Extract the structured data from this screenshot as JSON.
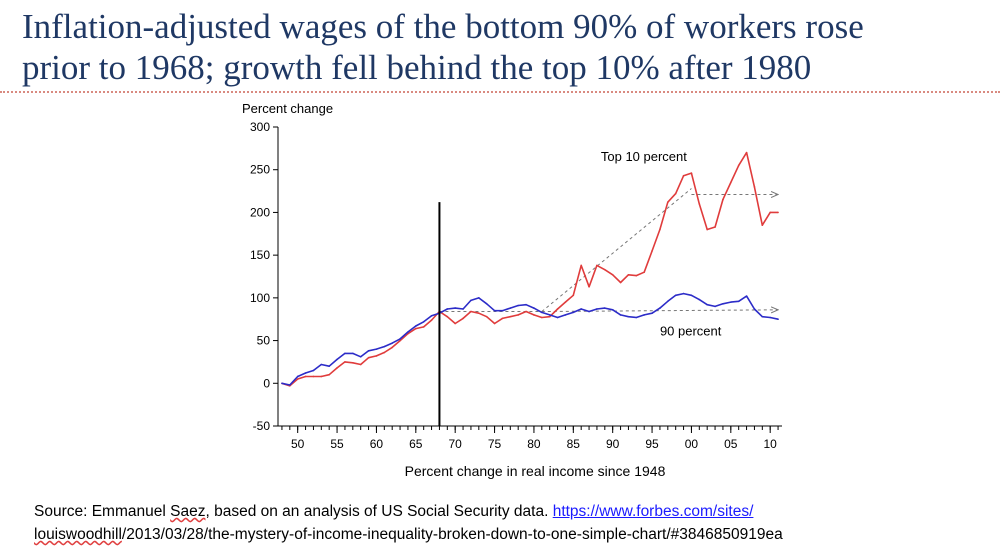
{
  "slide": {
    "title_line1": "Inflation-adjusted wages of the bottom 90% of workers rose",
    "title_line2": "prior to 1968; growth fell behind the top 10% after 1980"
  },
  "source": {
    "prefix": "Source: Emmanuel ",
    "name": "Saez",
    "middle": ", based on an analysis of US Social Security data. ",
    "link_part1": "https://www.forbes.com/sites/",
    "link_part2_handle": "louiswoodhill",
    "link_part2_rest": "/2013/03/28/the-mystery-of-income-inequality-broken-down-to-one-simple-chart/#3846850919ea"
  },
  "chart_data": {
    "type": "line",
    "ylabel": "Percent change",
    "xlabel": "Percent change in real income since 1948",
    "ylim": [
      -50,
      300
    ],
    "xlim": [
      1947.5,
      2011.5
    ],
    "y_ticks": [
      -50,
      0,
      50,
      100,
      150,
      200,
      250,
      300
    ],
    "x_ticks": [
      {
        "year": 1950,
        "label": "50"
      },
      {
        "year": 1955,
        "label": "55"
      },
      {
        "year": 1960,
        "label": "60"
      },
      {
        "year": 1965,
        "label": "65"
      },
      {
        "year": 1970,
        "label": "70"
      },
      {
        "year": 1975,
        "label": "75"
      },
      {
        "year": 1980,
        "label": "80"
      },
      {
        "year": 1985,
        "label": "85"
      },
      {
        "year": 1990,
        "label": "90"
      },
      {
        "year": 1995,
        "label": "95"
      },
      {
        "year": 2000,
        "label": "00"
      },
      {
        "year": 2005,
        "label": "05"
      },
      {
        "year": 2010,
        "label": "10"
      }
    ],
    "grid": false,
    "marker_year": 1968,
    "marker_top": 212,
    "colors": {
      "top10": "#e03c3c",
      "bottom90": "#2c2cc8",
      "axis": "#000000",
      "trend": "#777777"
    },
    "series": [
      {
        "name": "Top 10 percent",
        "x": [
          1948,
          1949,
          1950,
          1951,
          1952,
          1953,
          1954,
          1955,
          1956,
          1957,
          1958,
          1959,
          1960,
          1961,
          1962,
          1963,
          1964,
          1965,
          1966,
          1967,
          1968,
          1969,
          1970,
          1971,
          1972,
          1973,
          1974,
          1975,
          1976,
          1977,
          1978,
          1979,
          1980,
          1981,
          1982,
          1983,
          1984,
          1985,
          1986,
          1987,
          1988,
          1989,
          1990,
          1991,
          1992,
          1993,
          1994,
          1995,
          1996,
          1997,
          1998,
          1999,
          2000,
          2001,
          2002,
          2003,
          2004,
          2005,
          2006,
          2007,
          2008,
          2009,
          2010,
          2011
        ],
        "y": [
          0,
          -3,
          5,
          8,
          8,
          8,
          10,
          18,
          25,
          24,
          22,
          30,
          32,
          36,
          42,
          50,
          58,
          64,
          66,
          74,
          84,
          78,
          70,
          76,
          84,
          82,
          78,
          70,
          76,
          78,
          80,
          84,
          80,
          77,
          78,
          87,
          95,
          103,
          138,
          113,
          138,
          133,
          127,
          118,
          127,
          126,
          130,
          155,
          180,
          212,
          222,
          243,
          246,
          210,
          180,
          183,
          215,
          235,
          255,
          270,
          230,
          185,
          200,
          200
        ]
      },
      {
        "name": "90 percent",
        "x": [
          1948,
          1949,
          1950,
          1951,
          1952,
          1953,
          1954,
          1955,
          1956,
          1957,
          1958,
          1959,
          1960,
          1961,
          1962,
          1963,
          1964,
          1965,
          1966,
          1967,
          1968,
          1969,
          1970,
          1971,
          1972,
          1973,
          1974,
          1975,
          1976,
          1977,
          1978,
          1979,
          1980,
          1981,
          1982,
          1983,
          1984,
          1985,
          1986,
          1987,
          1988,
          1989,
          1990,
          1991,
          1992,
          1993,
          1994,
          1995,
          1996,
          1997,
          1998,
          1999,
          2000,
          2001,
          2002,
          2003,
          2004,
          2005,
          2006,
          2007,
          2008,
          2009,
          2010,
          2011
        ],
        "y": [
          0,
          -2,
          8,
          12,
          15,
          22,
          20,
          28,
          35,
          35,
          31,
          38,
          40,
          43,
          47,
          52,
          60,
          67,
          72,
          79,
          82,
          87,
          88,
          87,
          97,
          100,
          93,
          85,
          85,
          88,
          91,
          92,
          88,
          83,
          80,
          77,
          80,
          83,
          87,
          84,
          87,
          88,
          86,
          80,
          78,
          77,
          80,
          82,
          88,
          96,
          103,
          105,
          103,
          98,
          92,
          90,
          93,
          95,
          96,
          102,
          87,
          78,
          77,
          75
        ]
      }
    ],
    "trend_lines": [
      {
        "from": [
          1968,
          84
        ],
        "to": [
          1981,
          84
        ]
      },
      {
        "from": [
          1981,
          84
        ],
        "to": [
          2000,
          228
        ]
      },
      {
        "from": [
          2000,
          221
        ],
        "to": [
          2011,
          221
        ],
        "arrow": true
      },
      {
        "from": [
          1981,
          84
        ],
        "to": [
          2011,
          86
        ],
        "arrow": true
      }
    ],
    "annotations": [
      {
        "text": "Top 10 percent",
        "x": 1988.5,
        "y": 260,
        "series": "top10"
      },
      {
        "text": "90 percent",
        "x": 1996,
        "y": 56,
        "series": "bottom90"
      }
    ]
  }
}
